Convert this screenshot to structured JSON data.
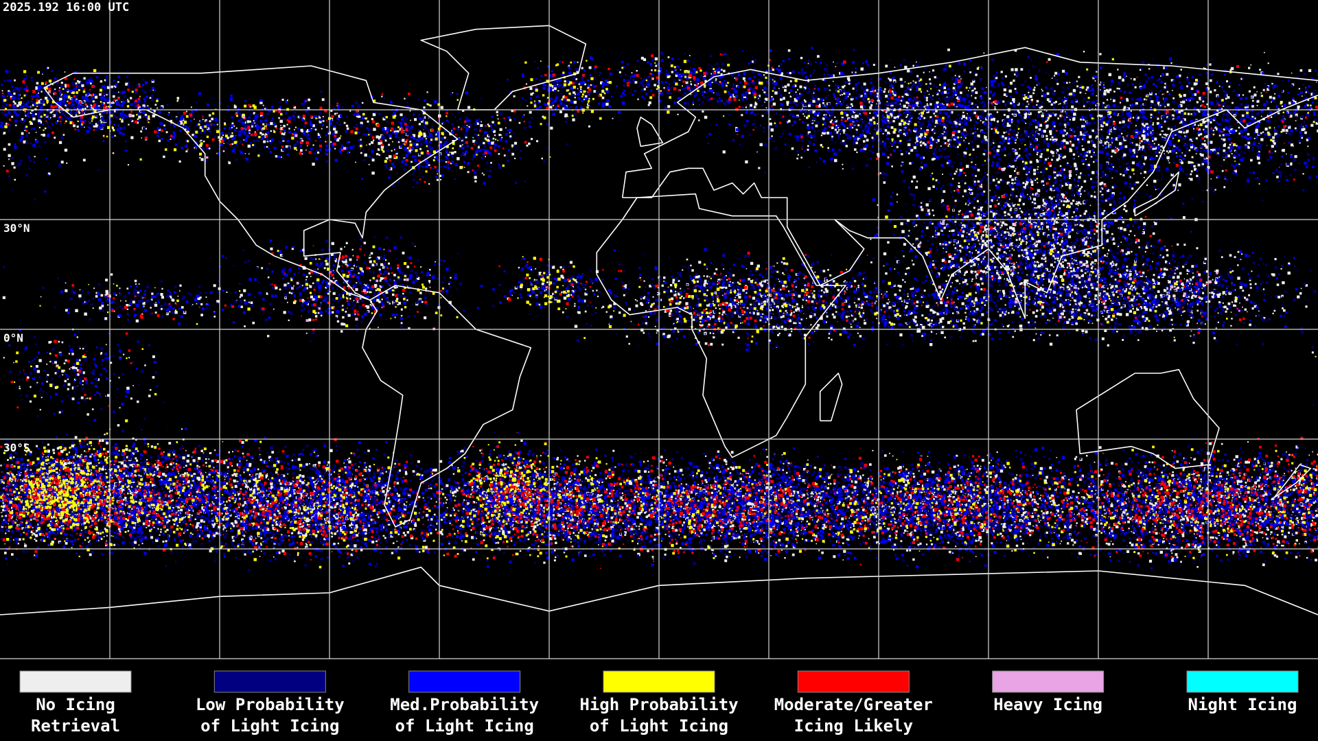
{
  "header": {
    "timestamp": "2025.192 16:00 UTC"
  },
  "latitude_labels": [
    "30°N",
    "0°N",
    "30°S"
  ],
  "legend": [
    {
      "color": "#eeeeee",
      "lines": [
        "No Icing",
        "Retrieval"
      ]
    },
    {
      "color": "#000080",
      "lines": [
        "Low Probability",
        "of Light Icing"
      ]
    },
    {
      "color": "#0000ff",
      "lines": [
        "Med.Probability",
        "of Light Icing"
      ]
    },
    {
      "color": "#ffff00",
      "lines": [
        "High Probability",
        "of Light Icing"
      ]
    },
    {
      "color": "#ff0000",
      "lines": [
        "Moderate/Greater",
        "Icing Likely"
      ]
    },
    {
      "color": "#e8a4e4",
      "lines": [
        "Heavy Icing",
        ""
      ]
    },
    {
      "color": "#00ffff",
      "lines": [
        "Night Icing",
        ""
      ]
    }
  ]
}
